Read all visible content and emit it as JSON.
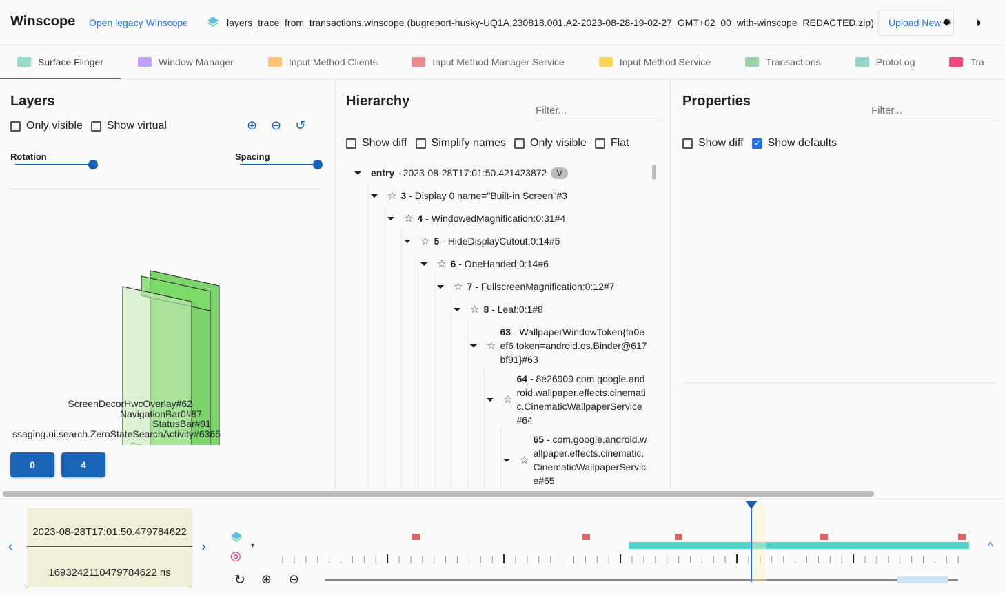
{
  "header": {
    "title": "Winscope",
    "legacy_link": "Open legacy Winscope",
    "file_name": "layers_trace_from_transactions.winscope (bugreport-husky-UQ1A.230818.001.A2-2023-08-28-19-02-27_GMT+02_00_with-winscope_REDACTED.zip)",
    "upload_label": "Upload New",
    "icons": [
      "layers-icon",
      "bug-icon",
      "theme-toggle-icon"
    ]
  },
  "tabs": [
    {
      "label": "Surface Flinger",
      "color": "#7dd3c0",
      "active": true
    },
    {
      "label": "Window Manager",
      "color": "#b388ff"
    },
    {
      "label": "Input Method Clients",
      "color": "#ffb74d"
    },
    {
      "label": "Input Method Manager Service",
      "color": "#e57373"
    },
    {
      "label": "Input Method Service",
      "color": "#ffca28"
    },
    {
      "label": "Transactions",
      "color": "#81c995"
    },
    {
      "label": "ProtoLog",
      "color": "#80cbc4"
    },
    {
      "label": "Tra",
      "color": "#e91e63"
    }
  ],
  "layers": {
    "title": "Layers",
    "only_visible": "Only visible",
    "show_virtual": "Show virtual",
    "rotation_label": "Rotation",
    "spacing_label": "Spacing",
    "rotation_value": 1.0,
    "spacing_value": 1.0,
    "layer_labels": [
      "ScreenDecorHwcOverlay#62",
      "NavigationBar0#87",
      "StatusBar#91",
      "ssaging.ui.search.ZeroStateSearchActivity#6365"
    ],
    "display_buttons": [
      "0",
      "4"
    ]
  },
  "hierarchy": {
    "title": "Hierarchy",
    "filter_placeholder": "Filter...",
    "show_diff": "Show diff",
    "simplify_names": "Simplify names",
    "only_visible": "Only visible",
    "flat": "Flat",
    "entry": {
      "bold": "entry",
      "rest": " - 2023-08-28T17:01:50.421423872",
      "badge": "V"
    },
    "nodes": [
      {
        "id": "3",
        "rest": " - Display 0 name=\"Built-in Screen\"#3"
      },
      {
        "id": "4",
        "rest": " - WindowedMagnification:0:31#4"
      },
      {
        "id": "5",
        "rest": " - HideDisplayCutout:0:14#5"
      },
      {
        "id": "6",
        "rest": " - OneHanded:0:14#6"
      },
      {
        "id": "7",
        "rest": " - FullscreenMagnification:0:12#7"
      },
      {
        "id": "8",
        "rest": " - Leaf:0:1#8"
      },
      {
        "id": "63",
        "rest": " - WallpaperWindowToken{fa0eef6 token=android.os.Binder@617bf91}#63"
      },
      {
        "id": "64",
        "rest": " - 8e26909 com.google.android.wallpaper.effects.cinematic.CinematicWallpaperService#64"
      },
      {
        "id": "65",
        "rest": " - com.google.android.wallpaper.effects.cinematic.CinematicWallpaperService#65"
      }
    ]
  },
  "properties": {
    "title": "Properties",
    "filter_placeholder": "Filter...",
    "show_diff": "Show diff",
    "show_defaults": "Show defaults",
    "show_defaults_checked": true
  },
  "timeline": {
    "timestamp": "2023-08-28T17:01:50.479784622",
    "timestamp_ns": "1693242110479784622 ns",
    "accent": "#1a73e8",
    "trace_icons": [
      "surface-flinger-icon",
      "transactions-icon"
    ]
  }
}
